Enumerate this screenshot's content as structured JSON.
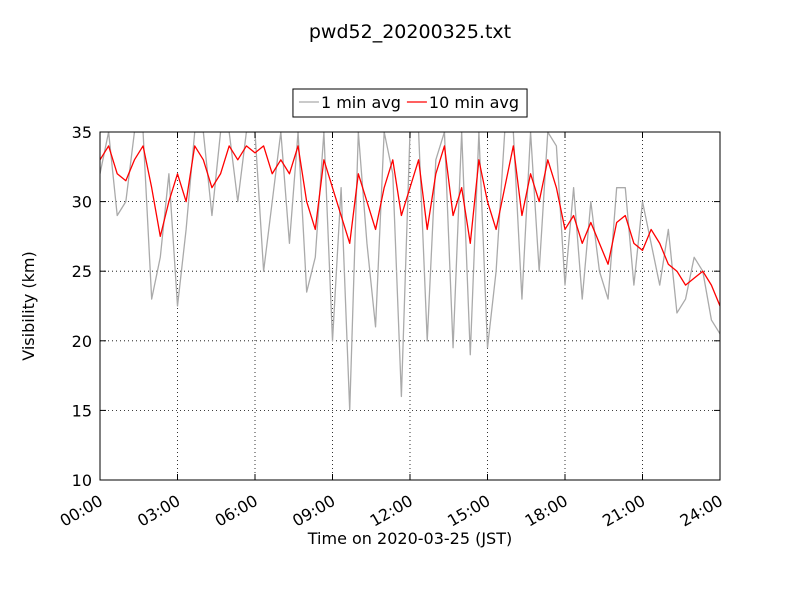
{
  "chart_data": {
    "type": "line",
    "title": "pwd52_20200325.txt",
    "xlabel": "Time on 2020-03-25 (JST)",
    "ylabel": "Visibility (km)",
    "x": [
      "00:00",
      "00:20",
      "00:40",
      "01:00",
      "01:20",
      "01:40",
      "02:00",
      "02:20",
      "02:40",
      "03:00",
      "03:20",
      "03:40",
      "04:00",
      "04:20",
      "04:40",
      "05:00",
      "05:20",
      "05:40",
      "06:00",
      "06:20",
      "06:40",
      "07:00",
      "07:20",
      "07:40",
      "08:00",
      "08:20",
      "08:40",
      "09:00",
      "09:20",
      "09:40",
      "10:00",
      "10:20",
      "10:40",
      "11:00",
      "11:20",
      "11:40",
      "12:00",
      "12:20",
      "12:40",
      "13:00",
      "13:20",
      "13:40",
      "14:00",
      "14:20",
      "14:40",
      "15:00",
      "15:20",
      "15:40",
      "16:00",
      "16:20",
      "16:40",
      "17:00",
      "17:20",
      "17:40",
      "18:00",
      "18:20",
      "18:40",
      "19:00",
      "19:20",
      "19:40",
      "20:00",
      "20:20",
      "20:40",
      "21:00",
      "21:20",
      "21:40",
      "22:00",
      "22:20",
      "22:40",
      "23:00",
      "23:20",
      "23:40",
      "24:00"
    ],
    "series": [
      {
        "name": "1 min avg",
        "color": "#aaaaaa",
        "values": [
          32,
          35,
          29,
          30,
          35,
          35,
          23,
          26,
          32,
          22.5,
          28,
          35,
          35,
          29,
          35,
          35,
          30,
          35,
          35,
          25,
          30,
          35,
          27,
          35,
          23.5,
          26,
          35,
          20,
          31,
          15,
          35,
          27,
          21,
          35,
          32,
          16,
          35,
          35,
          20,
          33,
          35,
          19.5,
          35,
          19,
          35,
          19.5,
          25,
          35,
          35,
          23,
          35,
          25,
          35,
          34,
          24,
          31,
          23,
          30,
          25,
          23,
          31,
          31,
          24,
          30,
          27,
          24,
          28,
          22,
          23,
          26,
          25,
          21.5,
          20.5
        ]
      },
      {
        "name": "10 min avg",
        "color": "#ff0000",
        "values": [
          33,
          34,
          32,
          31.5,
          33,
          34,
          31,
          27.5,
          30,
          32,
          30,
          34,
          33,
          31,
          32,
          34,
          33,
          34,
          33.5,
          34,
          32,
          33,
          32,
          34,
          30,
          28,
          33,
          31,
          29,
          27,
          32,
          30,
          28,
          31,
          33,
          29,
          31,
          33,
          28,
          32,
          34,
          29,
          31,
          27,
          33,
          30,
          28,
          31,
          34,
          29,
          32,
          30,
          33,
          31,
          28,
          29,
          27,
          28.5,
          27,
          25.5,
          28.5,
          29,
          27,
          26.5,
          28,
          27,
          25.5,
          25,
          24,
          24.5,
          25,
          24,
          22.5
        ]
      }
    ],
    "xlim": [
      "00:00",
      "24:00"
    ],
    "xticks": [
      "00:00",
      "03:00",
      "06:00",
      "09:00",
      "12:00",
      "15:00",
      "18:00",
      "21:00",
      "24:00"
    ],
    "ylim": [
      10,
      35
    ],
    "yticks": [
      10,
      15,
      20,
      25,
      30,
      35
    ],
    "grid": true,
    "legend": "top"
  }
}
